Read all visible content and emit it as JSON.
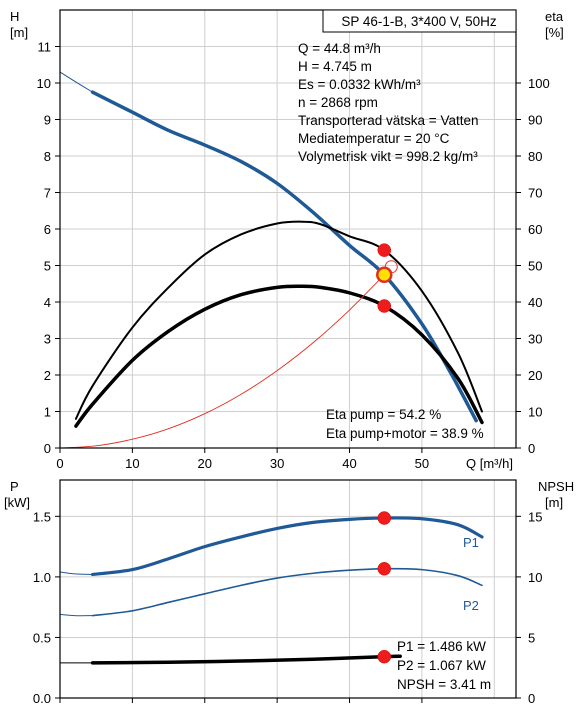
{
  "chart_data": [
    {
      "type": "line",
      "title": "SP 46-1-B, 3*400 V, 50Hz",
      "xlabel": "Q [m³/h]",
      "ylabel": "H [m]",
      "ylabel_line1": "H",
      "ylabel_line2": "[m]",
      "y2label_line1": "eta",
      "y2label_line2": "[%]",
      "xlim": [
        0,
        63
      ],
      "ylim": [
        0,
        12
      ],
      "y2lim": [
        0,
        120
      ],
      "x_ticks": [
        0,
        10,
        20,
        30,
        40,
        50
      ],
      "y_ticks": [
        0,
        1,
        2,
        3,
        4,
        5,
        6,
        7,
        8,
        9,
        10,
        11
      ],
      "y2_ticks": [
        0,
        10,
        20,
        30,
        40,
        50,
        60,
        70,
        80,
        90,
        100
      ],
      "grid": true,
      "operating_point": {
        "q": 44.8,
        "h": 4.745
      },
      "info_lines": [
        "Q = 44.8 m³/h",
        "H = 4.745 m",
        "Es = 0.0332 kWh/m³",
        "n = 2868 rpm",
        "Transporterad vätska = Vatten",
        "Mediatemperatur = 20 °C",
        "Volymetrisk vikt = 998.2 kg/m³"
      ],
      "eta_lines": [
        "Eta pump = 54.2 %",
        "Eta pump+motor = 38.9 %"
      ],
      "series": [
        {
          "key": "head_ext",
          "color": "#1f5a96",
          "x": [
            0,
            2,
            4.5
          ],
          "y": [
            10.3,
            10.05,
            9.75
          ]
        },
        {
          "key": "head",
          "color": "#1f5a96",
          "x": [
            4.5,
            10,
            15,
            20,
            25,
            30,
            35,
            40,
            44.8,
            50,
            54,
            57.5
          ],
          "y": [
            9.75,
            9.2,
            8.7,
            8.3,
            7.85,
            7.25,
            6.45,
            5.55,
            4.745,
            3.4,
            2.05,
            0.75
          ]
        },
        {
          "key": "eta_pump",
          "color": "#000000",
          "x": [
            2.2,
            4.5,
            10,
            15,
            20,
            25,
            30,
            33.5,
            36,
            40,
            44.8,
            50,
            55,
            58.3
          ],
          "y": [
            8,
            17,
            33,
            44,
            53,
            58.5,
            61.5,
            62,
            61.3,
            58,
            54.2,
            43,
            26,
            10
          ]
        },
        {
          "key": "eta_pump_motor",
          "color": "#000000",
          "x": [
            2.2,
            4.5,
            10,
            15,
            20,
            25,
            30,
            33.5,
            36,
            40,
            44.8,
            50,
            55,
            58.3
          ],
          "y": [
            6,
            12,
            24,
            32,
            38,
            42,
            44,
            44.3,
            44,
            42.5,
            38.9,
            31,
            19,
            7
          ]
        },
        {
          "key": "system_curve",
          "color": "#e03020",
          "x": [
            0,
            5,
            10,
            15,
            20,
            25,
            30,
            35,
            40,
            44.8
          ],
          "y": [
            0,
            0.06,
            0.24,
            0.53,
            0.94,
            1.47,
            2.12,
            2.89,
            3.78,
            4.745
          ]
        }
      ],
      "markers": [
        {
          "key": "eta_pump_point",
          "axis": "y2",
          "x": 44.8,
          "y": 54.2
        },
        {
          "key": "eta_motor_point",
          "axis": "y2",
          "x": 44.8,
          "y": 38.9
        }
      ]
    },
    {
      "type": "line",
      "ylabel_line1": "P",
      "ylabel_line2": "[kW]",
      "y2label_line1": "NPSH",
      "y2label_line2": "[m]",
      "xlim": [
        0,
        63
      ],
      "ylim": [
        0,
        1.8
      ],
      "y2lim": [
        0,
        18
      ],
      "y_ticks": [
        0.0,
        0.5,
        1.0,
        1.5
      ],
      "y_tick_labels": [
        "0.0",
        "0.5",
        "1.0",
        "1.5"
      ],
      "y2_ticks": [
        0,
        5,
        10,
        15
      ],
      "x_ticks": [
        0,
        10,
        20,
        30,
        40,
        50
      ],
      "grid": true,
      "info_lines": [
        "P1 = 1.486 kW",
        "P2 = 1.067 kW",
        "NPSH = 3.41 m"
      ],
      "series": [
        {
          "key": "p1_ext",
          "name": "",
          "color": "#1f5a96",
          "x": [
            0,
            2,
            4.5
          ],
          "y": [
            1.04,
            1.025,
            1.02
          ]
        },
        {
          "key": "p1",
          "name": "P1",
          "color": "#1f5a96",
          "x": [
            4.5,
            10,
            15,
            20,
            25,
            30,
            35,
            40,
            44.8,
            50,
            55,
            58.3
          ],
          "y": [
            1.02,
            1.06,
            1.15,
            1.25,
            1.33,
            1.4,
            1.45,
            1.475,
            1.486,
            1.48,
            1.43,
            1.33
          ]
        },
        {
          "key": "p2_ext",
          "name": "",
          "color": "#1f5a96",
          "x": [
            0,
            2,
            4.5
          ],
          "y": [
            0.69,
            0.68,
            0.68
          ]
        },
        {
          "key": "p2",
          "name": "P2",
          "color": "#1f5a96",
          "x": [
            4.5,
            10,
            15,
            20,
            25,
            30,
            35,
            40,
            44.8,
            50,
            55,
            58.3
          ],
          "y": [
            0.68,
            0.72,
            0.79,
            0.86,
            0.93,
            0.99,
            1.03,
            1.055,
            1.067,
            1.06,
            1.01,
            0.93
          ]
        },
        {
          "key": "npsh_ext",
          "name": "",
          "color": "#000000",
          "x": [
            0,
            4.5
          ],
          "y": [
            0.29,
            0.29
          ]
        },
        {
          "key": "npsh",
          "name": "NPSH",
          "color": "#000000",
          "x": [
            4.5,
            15,
            25,
            35,
            44.8,
            47
          ],
          "y": [
            0.29,
            0.295,
            0.305,
            0.32,
            0.341,
            0.345
          ]
        }
      ],
      "markers": [
        {
          "key": "p1_point",
          "x": 44.8,
          "y": 1.486
        },
        {
          "key": "p2_point",
          "x": 44.8,
          "y": 1.067
        },
        {
          "key": "npsh_point",
          "x": 44.8,
          "y": 0.341
        }
      ],
      "series_labels": [
        {
          "key": "p1",
          "text": "P1"
        },
        {
          "key": "p2",
          "text": "P2"
        }
      ]
    }
  ]
}
